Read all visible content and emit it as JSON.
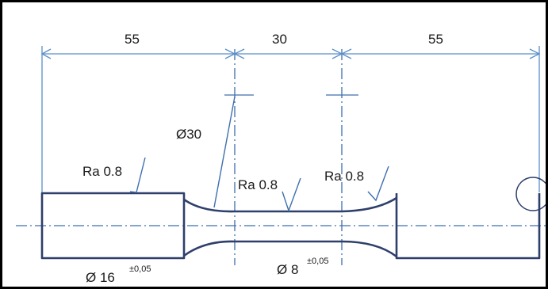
{
  "drawing": {
    "dimensions": {
      "left": "55",
      "middle": "30",
      "right": "55"
    },
    "radius_label": "Ø30",
    "roughness": {
      "left": "Ra 0.8",
      "middle": "Ra 0.8",
      "right": "Ra 0.8"
    },
    "diameter_end": {
      "value": "Ø 16",
      "tolerance": "±0,05"
    },
    "diameter_mid": {
      "value": "Ø 8",
      "tolerance": "±0,05"
    }
  },
  "colors": {
    "dimension_line": "#5b8fc9",
    "part_outline": "#2e3f6b",
    "centerline": "#3f6fae"
  }
}
